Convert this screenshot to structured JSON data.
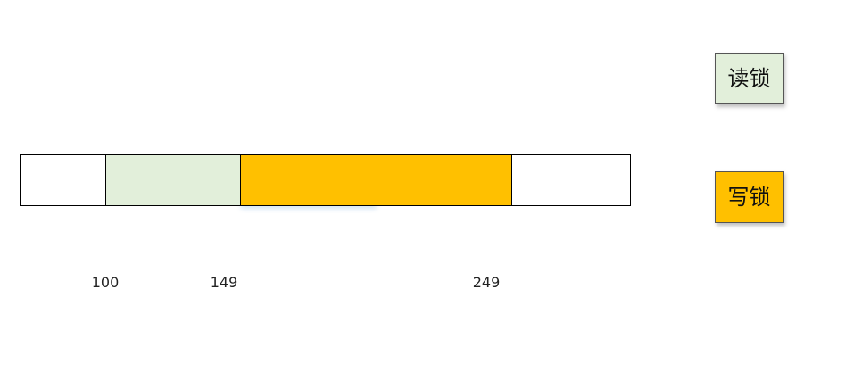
{
  "diagram": {
    "segments": [
      {
        "kind": "empty",
        "color": "#ffffff"
      },
      {
        "kind": "read-lock",
        "color": "#e2efda"
      },
      {
        "kind": "write-lock",
        "color": "#ffc000"
      },
      {
        "kind": "empty",
        "color": "#ffffff"
      }
    ],
    "boundaries": [
      "100",
      "149",
      "249"
    ],
    "legend": [
      {
        "label": "读锁",
        "color": "#e2efda"
      },
      {
        "label": "写锁",
        "color": "#ffc000"
      }
    ]
  }
}
